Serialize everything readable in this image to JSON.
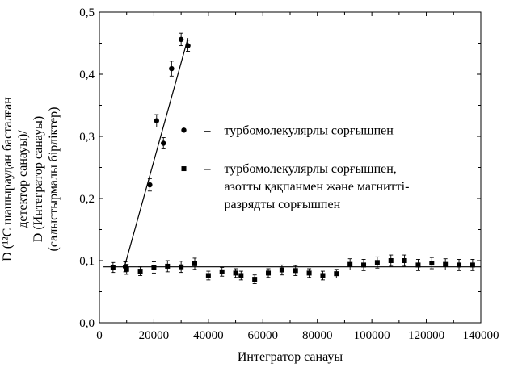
{
  "chart_data": {
    "type": "scatter",
    "title": "",
    "xlabel": "Интегратор санауы",
    "ylabel_lines": [
      "D (¹²C шашыраудан басталған",
      "детектор санауы)/",
      "D (Интегратор санауы)",
      "(салыстырмалы бірліктер)"
    ],
    "xlim": [
      0,
      140000
    ],
    "ylim": [
      0,
      0.5
    ],
    "x_ticks": [
      0,
      20000,
      40000,
      60000,
      80000,
      100000,
      120000,
      140000
    ],
    "x_tick_labels": [
      "0",
      "20000",
      "40000",
      "60000",
      "80000",
      "100000",
      "120000",
      "140000"
    ],
    "y_ticks": [
      0,
      0.1,
      0.2,
      0.3,
      0.4,
      0.5
    ],
    "y_tick_labels": [
      "0,0",
      "0,1",
      "0,2",
      "0,3",
      "0,4",
      "0,5"
    ],
    "series": [
      {
        "marker": "circle",
        "legend_label": "турбомолекулярлы сорғышпен",
        "points": [
          {
            "x": 9500,
            "y": 0.09,
            "err": 0.008
          },
          {
            "x": 18500,
            "y": 0.222,
            "err": 0.01
          },
          {
            "x": 21000,
            "y": 0.325,
            "err": 0.01
          },
          {
            "x": 23500,
            "y": 0.289,
            "err": 0.009
          },
          {
            "x": 26500,
            "y": 0.409,
            "err": 0.012
          },
          {
            "x": 30000,
            "y": 0.456,
            "err": 0.01
          },
          {
            "x": 32500,
            "y": 0.446,
            "err": 0.009
          }
        ],
        "fit_line": {
          "x": [
            9200,
            32500
          ],
          "y": [
            0.09,
            0.458
          ]
        }
      },
      {
        "marker": "square",
        "legend_label_lines": [
          "турбомолекулярлы сорғышпен,",
          "азотты қақпанмен және магнитті-",
          "разрядты сорғышпен"
        ],
        "points": [
          {
            "x": 5000,
            "y": 0.089,
            "err": 0.008
          },
          {
            "x": 10000,
            "y": 0.086,
            "err": 0.008
          },
          {
            "x": 15000,
            "y": 0.083,
            "err": 0.007
          },
          {
            "x": 20000,
            "y": 0.089,
            "err": 0.009
          },
          {
            "x": 25000,
            "y": 0.091,
            "err": 0.009
          },
          {
            "x": 30000,
            "y": 0.09,
            "err": 0.009
          },
          {
            "x": 35000,
            "y": 0.095,
            "err": 0.009
          },
          {
            "x": 40000,
            "y": 0.076,
            "err": 0.007
          },
          {
            "x": 45000,
            "y": 0.082,
            "err": 0.007
          },
          {
            "x": 50000,
            "y": 0.08,
            "err": 0.007
          },
          {
            "x": 52000,
            "y": 0.076,
            "err": 0.007
          },
          {
            "x": 57000,
            "y": 0.07,
            "err": 0.007
          },
          {
            "x": 62000,
            "y": 0.08,
            "err": 0.007
          },
          {
            "x": 67000,
            "y": 0.085,
            "err": 0.008
          },
          {
            "x": 72000,
            "y": 0.084,
            "err": 0.008
          },
          {
            "x": 77000,
            "y": 0.08,
            "err": 0.007
          },
          {
            "x": 82000,
            "y": 0.076,
            "err": 0.007
          },
          {
            "x": 87000,
            "y": 0.079,
            "err": 0.007
          },
          {
            "x": 92000,
            "y": 0.094,
            "err": 0.009
          },
          {
            "x": 97000,
            "y": 0.093,
            "err": 0.009
          },
          {
            "x": 102000,
            "y": 0.097,
            "err": 0.009
          },
          {
            "x": 107000,
            "y": 0.1,
            "err": 0.009
          },
          {
            "x": 112000,
            "y": 0.1,
            "err": 0.009
          },
          {
            "x": 117000,
            "y": 0.093,
            "err": 0.009
          },
          {
            "x": 122000,
            "y": 0.096,
            "err": 0.009
          },
          {
            "x": 127000,
            "y": 0.094,
            "err": 0.009
          },
          {
            "x": 132000,
            "y": 0.093,
            "err": 0.009
          },
          {
            "x": 137000,
            "y": 0.093,
            "err": 0.009
          }
        ],
        "fit_line": {
          "x": [
            1500,
            140000
          ],
          "y": [
            0.09,
            0.09
          ]
        }
      }
    ],
    "legend": {
      "placement": "inside-center-upper",
      "separator": "–",
      "entries": [
        {
          "marker": "circle",
          "anchor_data": [
            31000,
            0.31
          ]
        },
        {
          "marker": "square",
          "anchor_data": [
            31000,
            0.248
          ]
        }
      ]
    }
  }
}
